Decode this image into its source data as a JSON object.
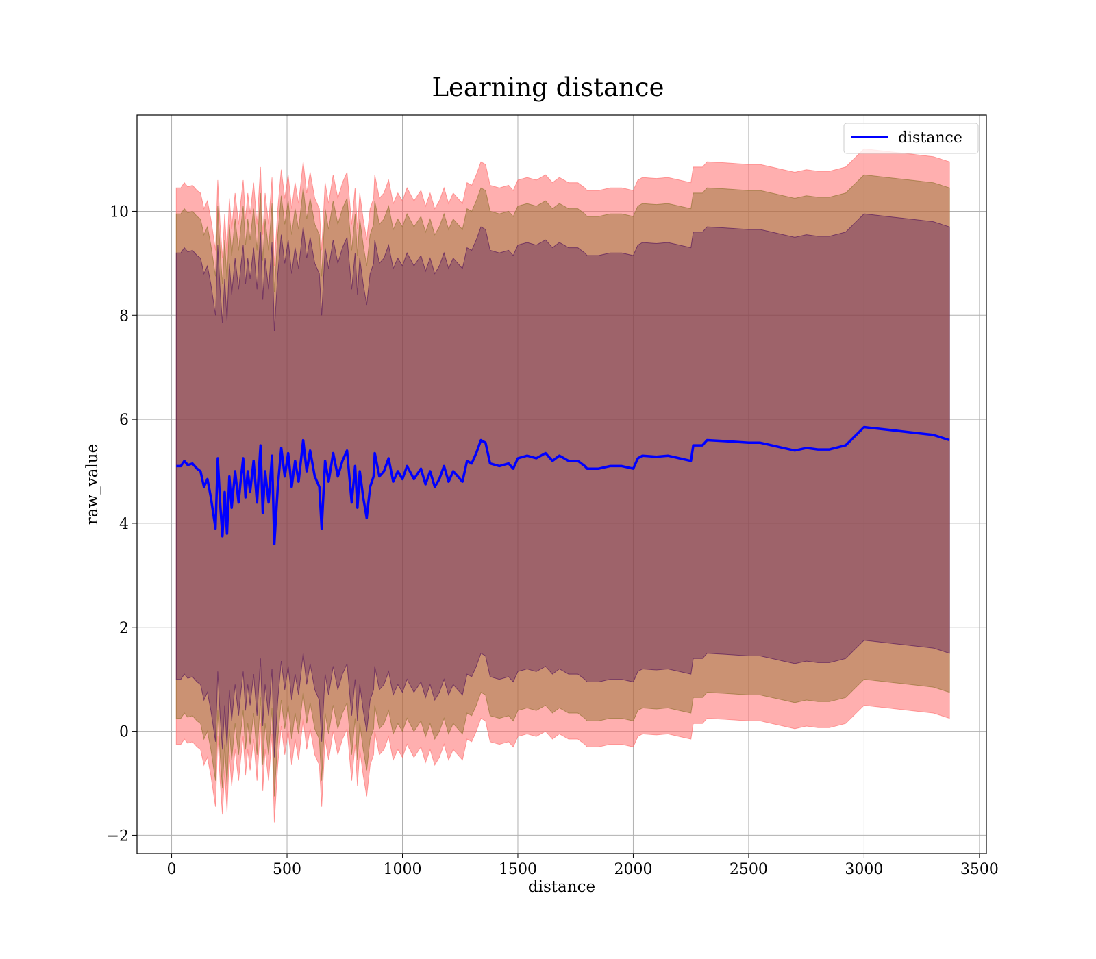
{
  "chart_data": {
    "type": "line",
    "title": "Learning distance",
    "xlabel": "distance",
    "ylabel": "raw_value",
    "xlim": [
      -150,
      3530
    ],
    "ylim": [
      -2.35,
      11.85
    ],
    "xticks": [
      0,
      500,
      1000,
      1500,
      2000,
      2500,
      3000,
      3500
    ],
    "xtick_labels": [
      "0",
      "500",
      "1000",
      "1500",
      "2000",
      "2500",
      "3000",
      "3500"
    ],
    "yticks": [
      -2,
      0,
      2,
      4,
      6,
      8,
      10
    ],
    "ytick_labels": [
      "−2",
      "0",
      "2",
      "4",
      "6",
      "8",
      "10"
    ],
    "grid": true,
    "legend": {
      "position": "top-right",
      "entries": [
        "distance"
      ]
    },
    "series": [
      {
        "name": "distance",
        "color": "#0000ff",
        "x": [
          20,
          40,
          55,
          70,
          90,
          110,
          125,
          140,
          155,
          170,
          180,
          190,
          200,
          210,
          220,
          230,
          240,
          250,
          260,
          275,
          290,
          300,
          310,
          320,
          330,
          340,
          355,
          370,
          385,
          395,
          405,
          420,
          435,
          445,
          460,
          475,
          490,
          505,
          520,
          535,
          550,
          570,
          585,
          600,
          620,
          640,
          650,
          665,
          680,
          700,
          720,
          740,
          760,
          780,
          795,
          805,
          815,
          830,
          845,
          860,
          875,
          880,
          900,
          920,
          940,
          960,
          980,
          1000,
          1020,
          1050,
          1080,
          1100,
          1120,
          1140,
          1160,
          1180,
          1200,
          1220,
          1240,
          1260,
          1280,
          1300,
          1320,
          1340,
          1360,
          1380,
          1420,
          1460,
          1480,
          1500,
          1540,
          1580,
          1620,
          1650,
          1680,
          1720,
          1760,
          1790,
          1800,
          1850,
          1900,
          1950,
          2000,
          2020,
          2040,
          2100,
          2150,
          2200,
          2250,
          2260,
          2300,
          2320,
          2400,
          2500,
          2550,
          2600,
          2650,
          2700,
          2750,
          2800,
          2850,
          2920,
          3000,
          3100,
          3200,
          3300,
          3370
        ],
        "values": [
          5.1,
          5.1,
          5.2,
          5.12,
          5.15,
          5.05,
          5.0,
          4.7,
          4.85,
          4.5,
          4.2,
          3.9,
          5.25,
          4.4,
          3.75,
          4.6,
          3.8,
          4.9,
          4.3,
          5.0,
          4.4,
          4.85,
          5.25,
          4.5,
          5.0,
          4.6,
          5.2,
          4.4,
          5.5,
          4.2,
          5.0,
          4.4,
          5.3,
          3.6,
          4.7,
          5.45,
          4.9,
          5.35,
          4.7,
          5.2,
          4.8,
          5.6,
          5.0,
          5.4,
          4.9,
          4.7,
          3.9,
          5.2,
          4.8,
          5.35,
          4.9,
          5.2,
          5.4,
          4.4,
          5.1,
          4.3,
          5.0,
          4.5,
          4.1,
          4.7,
          4.9,
          5.35,
          4.9,
          5.0,
          5.25,
          4.8,
          5.0,
          4.85,
          5.1,
          4.85,
          5.05,
          4.75,
          5.0,
          4.7,
          4.85,
          5.1,
          4.8,
          5.0,
          4.9,
          4.8,
          5.2,
          5.15,
          5.35,
          5.6,
          5.55,
          5.15,
          5.1,
          5.15,
          5.05,
          5.25,
          5.3,
          5.25,
          5.35,
          5.2,
          5.3,
          5.2,
          5.2,
          5.1,
          5.05,
          5.05,
          5.1,
          5.1,
          5.05,
          5.25,
          5.3,
          5.28,
          5.3,
          5.25,
          5.2,
          5.5,
          5.5,
          5.6,
          5.58,
          5.55,
          5.55,
          5.5,
          5.45,
          5.4,
          5.45,
          5.42,
          5.42,
          5.5,
          5.85,
          5.8,
          5.75,
          5.7,
          5.6
        ]
      }
    ],
    "bands": [
      {
        "name": "",
        "color": "#ff6666",
        "opacity": 0.52,
        "offset": 5.35
      },
      {
        "name": "",
        "color": "#8b6f2a",
        "opacity": 0.45,
        "offset": 4.85
      },
      {
        "name": "",
        "color": "#4b0c5a",
        "opacity": 0.35,
        "offset": 4.1
      }
    ]
  }
}
